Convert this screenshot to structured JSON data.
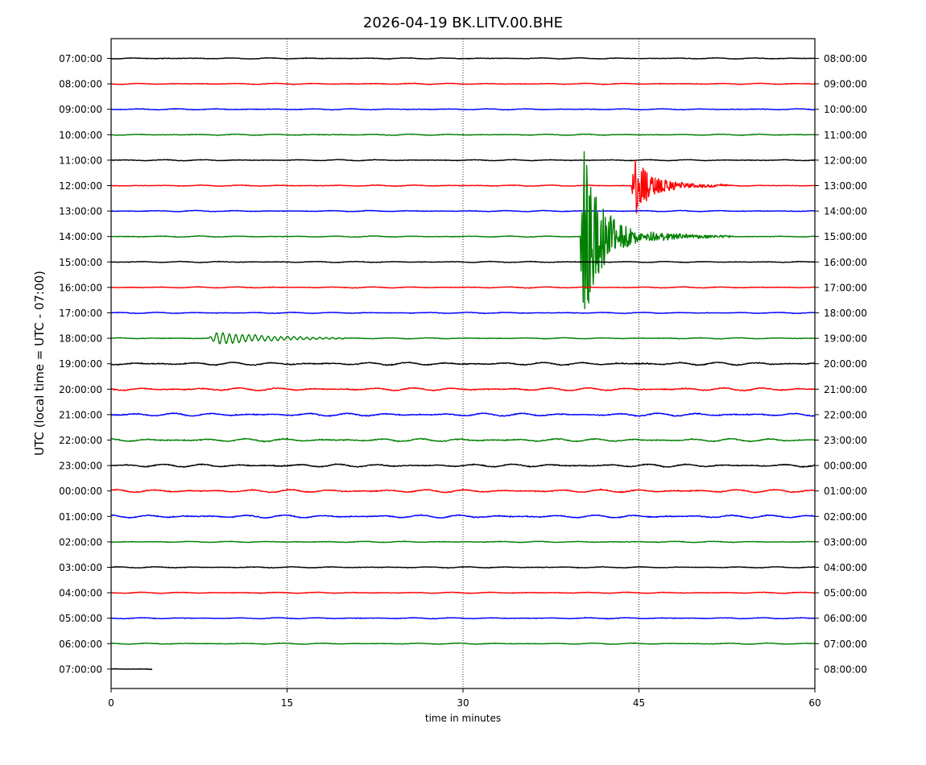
{
  "chart_data": {
    "type": "line",
    "title": "2026-04-19 BK.LITV.00.BHE",
    "xlabel": "time in minutes",
    "ylabel": "UTC (local time = UTC - 07:00)",
    "xlim": [
      0,
      60
    ],
    "x_ticks": [
      0,
      15,
      30,
      45,
      60
    ],
    "vertical_gridlines_at": [
      15,
      30,
      45
    ],
    "grid": "dotted vertical",
    "line_colors": [
      "#000000",
      "#ff0000",
      "#0000ff",
      "#008000"
    ],
    "rows": [
      {
        "left": "07:00:00",
        "right": "08:00:00"
      },
      {
        "left": "08:00:00",
        "right": "09:00:00"
      },
      {
        "left": "09:00:00",
        "right": "10:00:00"
      },
      {
        "left": "10:00:00",
        "right": "11:00:00"
      },
      {
        "left": "11:00:00",
        "right": "12:00:00"
      },
      {
        "left": "12:00:00",
        "right": "13:00:00"
      },
      {
        "left": "13:00:00",
        "right": "14:00:00"
      },
      {
        "left": "14:00:00",
        "right": "15:00:00"
      },
      {
        "left": "15:00:00",
        "right": "16:00:00"
      },
      {
        "left": "16:00:00",
        "right": "17:00:00"
      },
      {
        "left": "17:00:00",
        "right": "18:00:00"
      },
      {
        "left": "18:00:00",
        "right": "19:00:00"
      },
      {
        "left": "19:00:00",
        "right": "20:00:00"
      },
      {
        "left": "20:00:00",
        "right": "21:00:00"
      },
      {
        "left": "21:00:00",
        "right": "22:00:00"
      },
      {
        "left": "22:00:00",
        "right": "23:00:00"
      },
      {
        "left": "23:00:00",
        "right": "00:00:00"
      },
      {
        "left": "00:00:00",
        "right": "01:00:00"
      },
      {
        "left": "01:00:00",
        "right": "02:00:00"
      },
      {
        "left": "02:00:00",
        "right": "03:00:00"
      },
      {
        "left": "03:00:00",
        "right": "04:00:00"
      },
      {
        "left": "04:00:00",
        "right": "05:00:00"
      },
      {
        "left": "05:00:00",
        "right": "06:00:00"
      },
      {
        "left": "06:00:00",
        "right": "07:00:00"
      },
      {
        "left": "07:00:00",
        "right": "08:00:00"
      }
    ],
    "last_row_data_end_minute": 3.5,
    "events": [
      {
        "row": 11,
        "start_minute": 8.3,
        "end_minute": 20,
        "amplitude_rows": 0.28,
        "period_minutes": 0.55,
        "kind": "surface-wave train"
      },
      {
        "row": 7,
        "start_minute": 40,
        "end_minute": 53,
        "amplitude_rows": 4.0,
        "kind": "large local earthquake"
      },
      {
        "row": 5,
        "start_minute": 44.4,
        "end_minute": 53,
        "amplitude_rows": 1.3,
        "kind": "aftershock"
      }
    ]
  }
}
